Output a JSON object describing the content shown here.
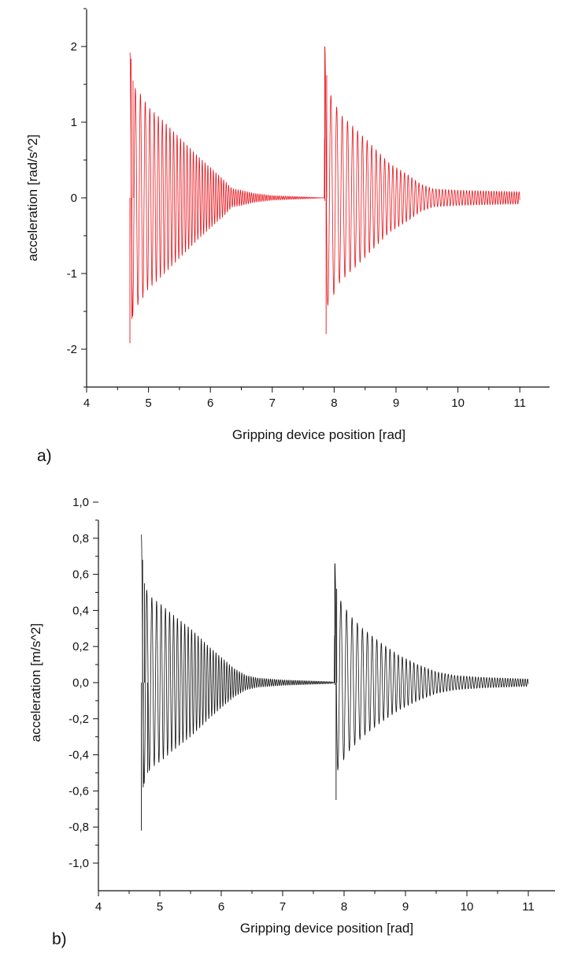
{
  "chart_data": [
    {
      "type": "line",
      "panel_label": "a)",
      "xlabel": "Gripping device position [rad]",
      "ylabel": "acceleration [rad/s^2]",
      "xlim": [
        4,
        11
      ],
      "ylim": [
        -2.5,
        2.5
      ],
      "x_ticks": [
        4,
        5,
        6,
        7,
        8,
        9,
        10,
        11
      ],
      "y_ticks": [
        -2,
        -1,
        0,
        1,
        2
      ],
      "x_tick_labels": [
        "4",
        "5",
        "6",
        "7",
        "8",
        "9",
        "10",
        "11"
      ],
      "y_tick_labels": [
        "-2",
        "-1",
        "0",
        "1",
        "2"
      ],
      "grid": false,
      "color": "#e8131a",
      "series": [
        {
          "x": [
            4.7,
            4.72,
            4.73,
            4.75,
            4.78,
            4.85,
            5.0,
            5.2,
            5.5,
            5.8,
            6.0,
            6.2,
            6.35,
            6.5,
            6.7,
            7.0,
            7.3,
            7.6,
            7.84,
            7.85,
            7.87,
            7.88,
            7.9,
            7.95,
            8.1,
            8.3,
            8.6,
            8.9,
            9.2,
            9.4,
            9.6,
            10.0,
            10.5,
            11.0
          ],
          "y": [
            -1.92,
            1.84,
            -1.6,
            1.55,
            -1.45,
            1.4,
            1.2,
            1.05,
            0.8,
            0.55,
            0.4,
            0.25,
            0.12,
            0.1,
            0.06,
            0.03,
            0.02,
            0.01,
            0.0,
            2.0,
            -1.8,
            1.62,
            -1.4,
            1.35,
            1.1,
            0.95,
            0.7,
            0.45,
            0.3,
            0.18,
            0.12,
            0.1,
            0.09,
            0.08
          ]
        }
      ]
    },
    {
      "type": "line",
      "panel_label": "b)",
      "xlabel": "Gripping device position [rad]",
      "ylabel": "acceleration [m/s^2]",
      "xlim": [
        4,
        11.5
      ],
      "ylim": [
        -1.0,
        1.0
      ],
      "x_ticks": [
        4,
        5,
        6,
        7,
        8,
        9,
        10,
        11
      ],
      "y_ticks": [
        -1.0,
        -0.8,
        -0.6,
        -0.4,
        -0.2,
        0.0,
        0.2,
        0.4,
        0.6,
        0.8,
        1.0
      ],
      "x_tick_labels": [
        "4",
        "5",
        "6",
        "7",
        "8",
        "9",
        "10",
        "11"
      ],
      "y_tick_labels": [
        "-1,0",
        "-0,8",
        "-0,6",
        "-0,4",
        "-0,2",
        "0,0",
        "0,2",
        "0,4",
        "0,6",
        "0,8",
        "1,0"
      ],
      "grid": false,
      "color": "#111111",
      "series": [
        {
          "x": [
            4.7,
            4.72,
            4.73,
            4.75,
            4.8,
            4.9,
            5.0,
            5.2,
            5.5,
            5.8,
            6.0,
            6.2,
            6.4,
            6.6,
            6.8,
            7.0,
            7.4,
            7.8,
            7.84,
            7.85,
            7.87,
            7.88,
            7.9,
            7.95,
            8.1,
            8.3,
            8.6,
            8.9,
            9.2,
            9.5,
            9.8,
            10.2,
            10.6,
            11.0
          ],
          "y": [
            -0.82,
            0.68,
            -0.58,
            0.55,
            -0.5,
            0.46,
            0.44,
            0.38,
            0.3,
            0.2,
            0.14,
            0.08,
            0.04,
            0.025,
            0.02,
            0.015,
            0.01,
            0.005,
            0.0,
            0.66,
            -0.65,
            0.52,
            -0.48,
            0.45,
            0.37,
            0.3,
            0.22,
            0.15,
            0.1,
            0.06,
            0.04,
            0.03,
            0.025,
            0.02
          ]
        }
      ]
    }
  ]
}
